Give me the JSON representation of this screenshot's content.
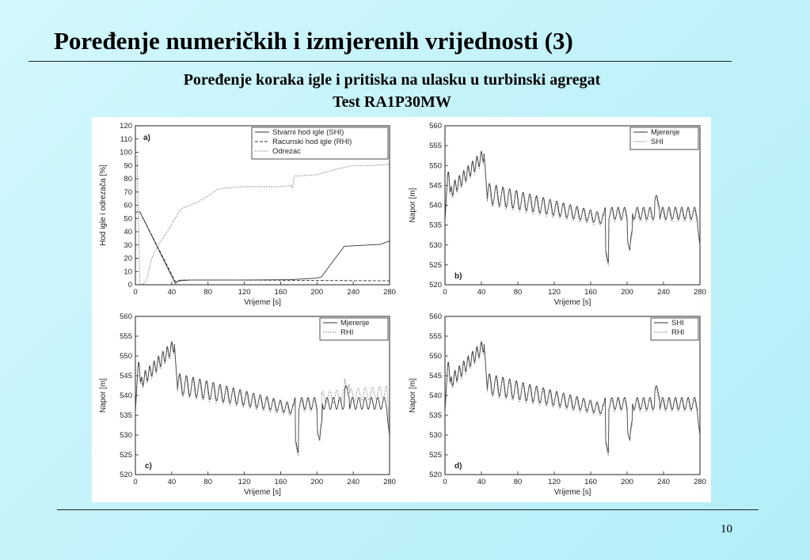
{
  "slide": {
    "title": "Poređenje numeričkih i izmjerenih vrijednosti (3)",
    "subtitle": "Poređenje koraka igle i pritiska na ulasku u turbinski agregat",
    "test": "Test RA1P30MW",
    "page_number": "10"
  },
  "chart_data": [
    {
      "type": "line",
      "panel_label": "a)",
      "xlabel": "Vrijeme [s]",
      "ylabel": "Hod igle i odrezača [%]",
      "xlim": [
        0,
        280
      ],
      "ylim": [
        0,
        120
      ],
      "xticks": [
        0,
        40,
        80,
        120,
        160,
        200,
        240,
        280
      ],
      "yticks": [
        0,
        10,
        20,
        30,
        40,
        50,
        60,
        70,
        80,
        90,
        100,
        110,
        120
      ],
      "legend_position": "top-right",
      "series": [
        {
          "name": "Stvarni hod igle (SHI)",
          "style": "solid",
          "color": "#333333",
          "x": [
            0,
            5,
            44,
            48,
            60,
            120,
            170,
            200,
            205,
            230,
            270,
            280
          ],
          "y": [
            55,
            55,
            1,
            3,
            3.5,
            3.5,
            3.8,
            5,
            6,
            29,
            30.5,
            33
          ]
        },
        {
          "name": "Racunski hod igle (RHI)",
          "style": "dashed",
          "color": "#333333",
          "x": [
            0,
            5,
            44,
            50,
            120,
            200,
            280
          ],
          "y": [
            55,
            55,
            2.5,
            3.5,
            3.5,
            3.2,
            3
          ]
        },
        {
          "name": "Odrezac",
          "style": "dotted",
          "color": "#777777",
          "x": [
            0,
            2,
            3,
            5,
            8,
            12,
            18,
            25,
            35,
            50,
            60,
            70,
            80,
            90,
            100,
            120,
            140,
            160,
            172,
            173,
            175,
            200,
            220,
            240,
            260,
            280
          ],
          "y": [
            97,
            97,
            60,
            1,
            0,
            3,
            20,
            30,
            40,
            57,
            60,
            63,
            67,
            72,
            73,
            74,
            74,
            74,
            75,
            73,
            82,
            83,
            87,
            90,
            90,
            91
          ]
        }
      ]
    },
    {
      "type": "line",
      "panel_label": "b)",
      "xlabel": "Vrijeme [s]",
      "ylabel": "Napor [m]",
      "xlim": [
        0,
        280
      ],
      "ylim": [
        520,
        560
      ],
      "xticks": [
        0,
        40,
        80,
        120,
        160,
        200,
        240,
        280
      ],
      "yticks": [
        520,
        525,
        530,
        535,
        540,
        545,
        550,
        555,
        560
      ],
      "legend_position": "top-right",
      "series": [
        {
          "name": "Mjerenje",
          "style": "solid",
          "color": "#333333"
        },
        {
          "name": "SHI",
          "style": "dotted",
          "color": "#777777"
        }
      ]
    },
    {
      "type": "line",
      "panel_label": "c)",
      "xlabel": "Vrijeme [s]",
      "ylabel": "Napor [m]",
      "xlim": [
        0,
        280
      ],
      "ylim": [
        520,
        560
      ],
      "xticks": [
        0,
        40,
        80,
        120,
        160,
        200,
        240,
        280
      ],
      "yticks": [
        520,
        525,
        530,
        535,
        540,
        545,
        550,
        555,
        560
      ],
      "legend_position": "top-right",
      "series": [
        {
          "name": "Mjerenje",
          "style": "solid",
          "color": "#333333"
        },
        {
          "name": "RHI",
          "style": "dotted",
          "color": "#777777"
        }
      ]
    },
    {
      "type": "line",
      "panel_label": "d)",
      "xlabel": "Vrijeme [s]",
      "ylabel": "Napor [m]",
      "xlim": [
        0,
        280
      ],
      "ylim": [
        520,
        560
      ],
      "xticks": [
        0,
        40,
        80,
        120,
        160,
        200,
        240,
        280
      ],
      "yticks": [
        520,
        525,
        530,
        535,
        540,
        545,
        550,
        555,
        560
      ],
      "legend_position": "top-right",
      "series": [
        {
          "name": "SHI",
          "style": "solid",
          "color": "#333333"
        },
        {
          "name": "RHI",
          "style": "dotted",
          "color": "#777777"
        }
      ]
    }
  ]
}
